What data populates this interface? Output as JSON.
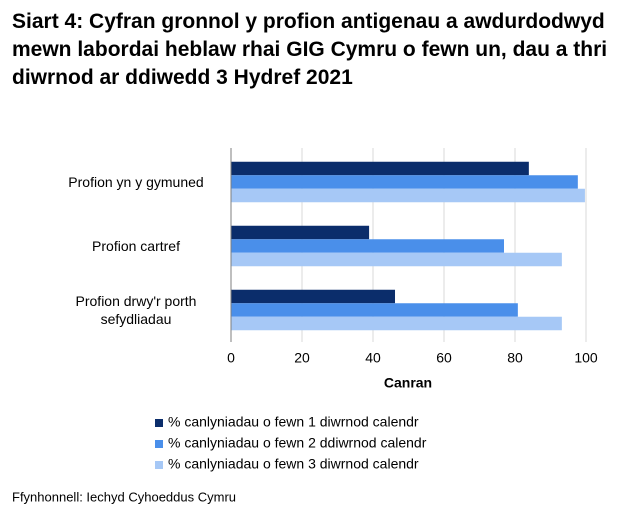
{
  "chart_data": {
    "type": "bar",
    "orientation": "horizontal",
    "title": "Siart 4: Cyfran gronnol y profion antigenau a awdurdodwyd mewn labordai heblaw rhai GIG Cymru o fewn un, dau a thri diwrnod ar ddiwedd 3 Hydref 2021",
    "categories": [
      "Profion yn y gymuned",
      "Profion cartref",
      "Profion drwy'r porth sefydliadau"
    ],
    "series": [
      {
        "name": "% canlyniadau o fewn 1 diwrnod calendr",
        "color": "#0b2d6b",
        "values": [
          83.9,
          38.9,
          46.2
        ]
      },
      {
        "name": "% canlyniadau o fewn 2 ddiwrnod calendr",
        "color": "#4a8fea",
        "values": [
          97.7,
          76.9,
          80.8
        ]
      },
      {
        "name": "% canlyniadau o fewn 3 diwrnod calendr",
        "color": "#a6c8f6",
        "values": [
          99.7,
          93.2,
          93.2
        ]
      }
    ],
    "xlim": [
      0,
      100
    ],
    "xticks": [
      0,
      20,
      40,
      60,
      80,
      100
    ],
    "grid": true,
    "xlabel": "Canran",
    "source": "Ffynhonnell: Iechyd Cyhoeddus Cymru"
  }
}
